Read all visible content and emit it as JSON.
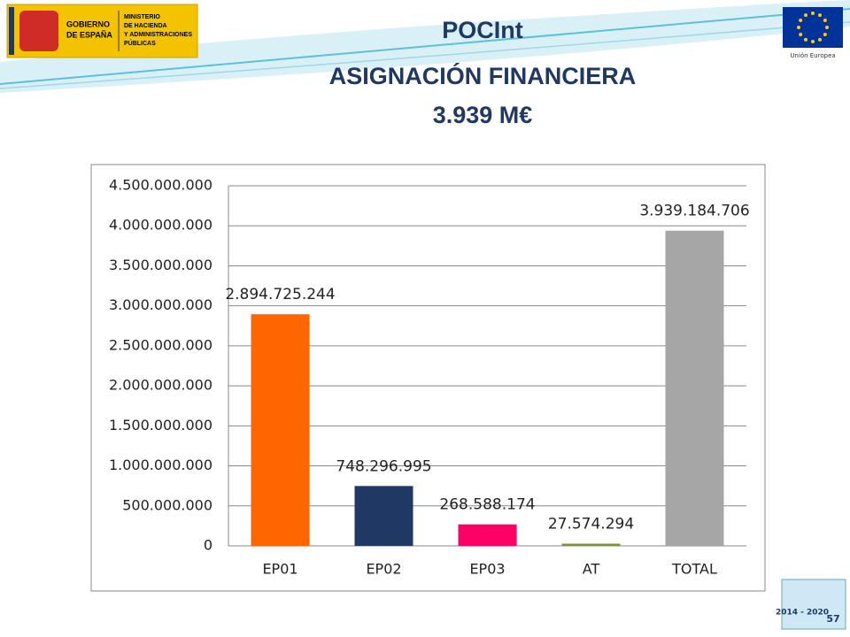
{
  "slide": {
    "gov_line1": "GOBIERNO",
    "gov_line2": "DE ESPAÑA",
    "ministry": [
      "MINISTERIO",
      "DE HACIENDA",
      "Y ADMINISTRACIONES",
      "PÚBLICAS"
    ],
    "eu": "Unión Europea",
    "title": "POCInt",
    "subtitle": "ASIGNACIÓN FINANCIERA",
    "amount": "3.939 M€",
    "period": "2014 - 2020",
    "page": "57"
  },
  "chart_data": {
    "type": "bar",
    "categories": [
      "EP01",
      "EP02",
      "EP03",
      "AT",
      "TOTAL"
    ],
    "values": [
      2894725244,
      748296995,
      268588174,
      27574294,
      3939184706
    ],
    "value_labels": [
      "2.894.725.244",
      "748.296.995",
      "268.588.174",
      "27.574.294",
      "3.939.184.706"
    ],
    "colors": [
      "#ff6600",
      "#1f3864",
      "#ff0066",
      "#77933c",
      "#a6a6a6"
    ],
    "ylim": [
      0,
      4500000000
    ],
    "yticks": [
      0,
      {
        "value": 500000000,
        "label": "500.000.000"
      },
      {
        "value": 1000000000,
        "label": "1.000.000.000"
      },
      {
        "value": 1500000000,
        "label": "1.500.000.000"
      },
      {
        "value": 2000000000,
        "label": "2.000.000.000"
      },
      {
        "value": 2500000000,
        "label": "2.500.000.000"
      },
      {
        "value": 3000000000,
        "label": "3.000.000.000"
      },
      {
        "value": 3500000000,
        "label": "3.500.000.000"
      },
      {
        "value": 4000000000,
        "label": "4.000.000.000"
      },
      {
        "value": 4500000000,
        "label": "4.500.000.000"
      }
    ],
    "grid": true
  }
}
